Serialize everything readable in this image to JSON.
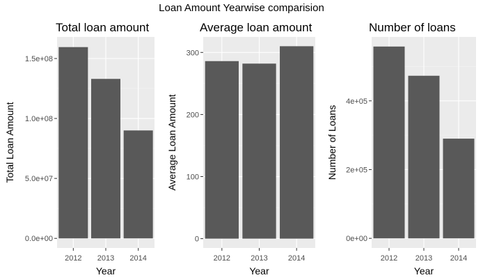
{
  "title": "Loan Amount Yearwise comparision",
  "colors": {
    "bar": "#595959",
    "panel": "#ebebeb",
    "grid": "#ffffff"
  },
  "chart_data": [
    {
      "type": "bar",
      "title": "Total loan amount",
      "xlabel": "Year",
      "ylabel": "Total Loan Amount",
      "categories": [
        "2012",
        "2013",
        "2014"
      ],
      "values": [
        159500000,
        133000000,
        90000000
      ],
      "ylim": [
        -8000000,
        168000000
      ],
      "yticks": [
        0,
        50000000,
        100000000,
        150000000
      ],
      "ytick_labels": [
        "0.0e+00",
        "5.0e+07",
        "1.0e+08",
        "1.5e+08"
      ],
      "grid": true
    },
    {
      "type": "bar",
      "title": "Average loan amount",
      "xlabel": "Year",
      "ylabel": "Average Loan Amount",
      "categories": [
        "2012",
        "2013",
        "2014"
      ],
      "values": [
        286,
        282,
        310
      ],
      "ylim": [
        -15,
        325
      ],
      "yticks": [
        0,
        100,
        200,
        300
      ],
      "ytick_labels": [
        "0",
        "100",
        "200",
        "300"
      ],
      "grid": true
    },
    {
      "type": "bar",
      "title": "Number of loans",
      "xlabel": "Year",
      "ylabel": "Number of Loans",
      "categories": [
        "2012",
        "2013",
        "2014"
      ],
      "values": [
        558000,
        473000,
        290000
      ],
      "ylim": [
        -28000,
        586000
      ],
      "yticks": [
        0,
        200000,
        400000
      ],
      "ytick_labels": [
        "0e+00",
        "2e+05",
        "4e+05"
      ],
      "grid": true
    }
  ]
}
